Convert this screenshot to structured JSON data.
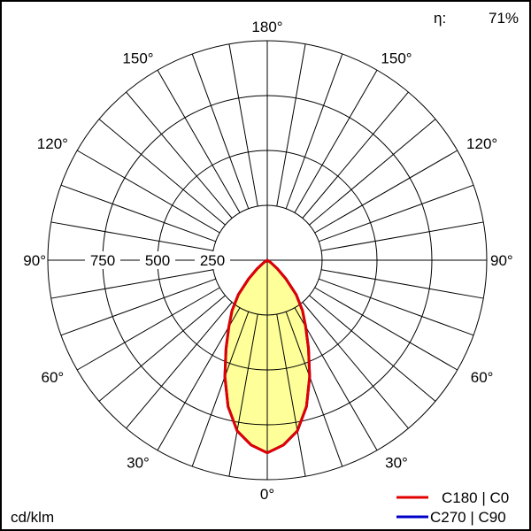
{
  "chart_data": {
    "type": "polar",
    "efficiency_label": "η:",
    "efficiency_value": "71%",
    "unit_label": "cd/klm",
    "radial_ticks": [
      250,
      500,
      750
    ],
    "radial_max": 1000,
    "radial_tick_labels": [
      "250",
      "500",
      "750"
    ],
    "angle_labels": {
      "bottom": "0°",
      "left": [
        "30°",
        "60°",
        "90°",
        "120°",
        "150°"
      ],
      "right": [
        "30°",
        "60°",
        "90°",
        "120°",
        "150°"
      ],
      "top": "180°"
    },
    "grid": true,
    "legend_position": "bottom-right",
    "angles_deg": [
      0,
      5,
      10,
      15,
      20,
      25,
      30,
      35,
      40,
      45,
      50,
      55,
      60
    ],
    "series": [
      {
        "name": "C180 | C0",
        "color": "#e00000",
        "values": [
          878,
          845,
          790,
          690,
          565,
          445,
          350,
          280,
          205,
          120,
          60,
          20,
          0
        ]
      },
      {
        "name": "C270 | C90",
        "color": "#0000c8",
        "values": [
          878,
          845,
          790,
          690,
          565,
          445,
          350,
          280,
          205,
          120,
          60,
          20,
          0
        ]
      }
    ],
    "fill_color": "#ffff99"
  }
}
